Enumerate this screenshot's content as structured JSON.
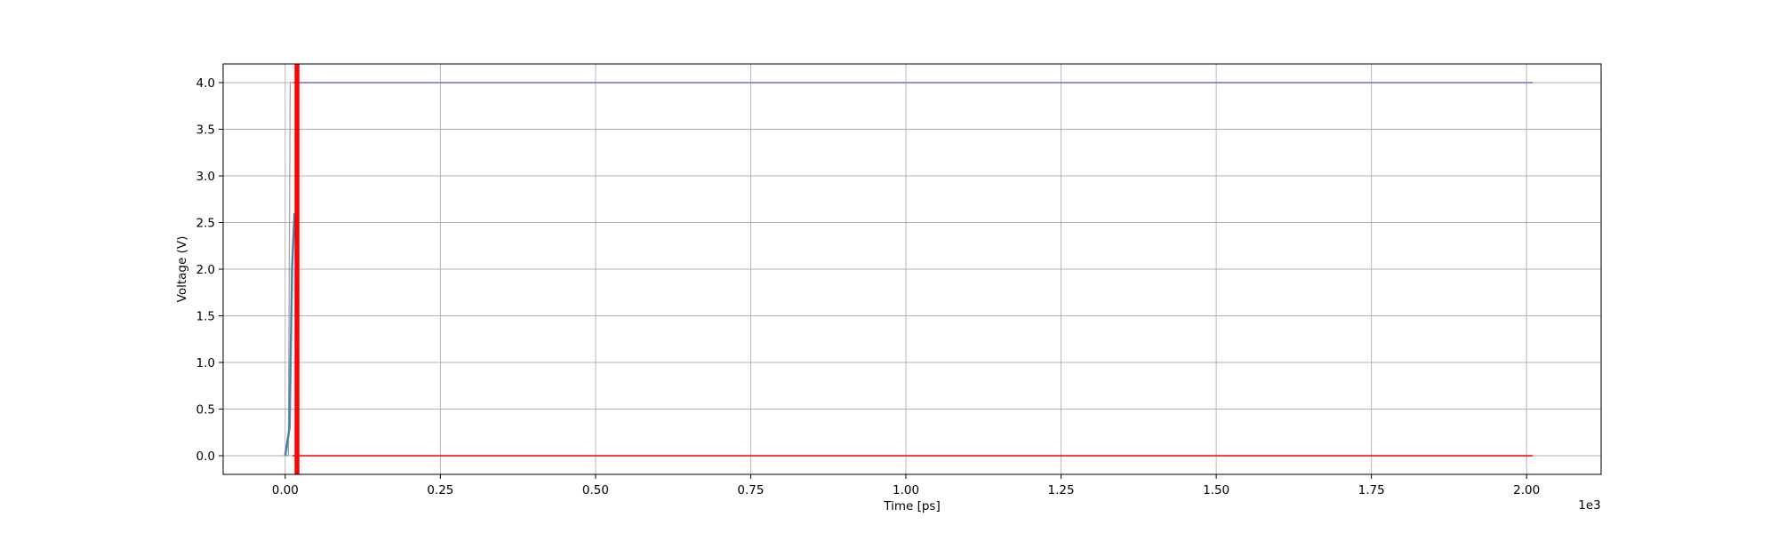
{
  "chart_data": {
    "type": "line",
    "title": "",
    "xlabel": "Time [ps]",
    "ylabel": "Voltage (V)",
    "x_offset_text": "1e3",
    "xlim": [
      -0.1,
      2.12
    ],
    "ylim": [
      -0.2,
      4.2
    ],
    "xticks": [
      0.0,
      0.25,
      0.5,
      0.75,
      1.0,
      1.25,
      1.5,
      1.75,
      2.0
    ],
    "xtick_labels": [
      "0.00",
      "0.25",
      "0.50",
      "0.75",
      "1.00",
      "1.25",
      "1.50",
      "1.75",
      "2.00"
    ],
    "yticks": [
      0.0,
      0.5,
      1.0,
      1.5,
      2.0,
      2.5,
      3.0,
      3.5,
      4.0
    ],
    "ytick_labels": [
      "0.0",
      "0.5",
      "1.0",
      "1.5",
      "2.0",
      "2.5",
      "3.0",
      "3.5",
      "4.0"
    ],
    "grid": true,
    "legend": "none",
    "series": [
      {
        "color": "#9a9a9a",
        "width": 1.2,
        "x": [
          0.0,
          0.005,
          0.008,
          0.012,
          2.01
        ],
        "y": [
          0.0,
          0.0,
          4.0,
          4.0,
          4.0
        ]
      },
      {
        "color": "#4f7fb0",
        "width": 2.5,
        "x": [
          0.0,
          0.007,
          0.011,
          0.015
        ],
        "y": [
          0.0,
          0.3,
          2.0,
          2.6
        ]
      },
      {
        "color": "#7c6fd8",
        "width": 1.5,
        "x": [
          0.012,
          2.01
        ],
        "y": [
          4.0,
          4.0
        ]
      },
      {
        "color": "#ff0000",
        "width": 1.5,
        "x": [
          0.012,
          2.01
        ],
        "y": [
          0.0,
          0.0
        ]
      },
      {
        "color": "#ff0000",
        "width": 5.5,
        "x": [
          0.019,
          0.019
        ],
        "y": [
          -0.2,
          4.2
        ]
      }
    ]
  }
}
